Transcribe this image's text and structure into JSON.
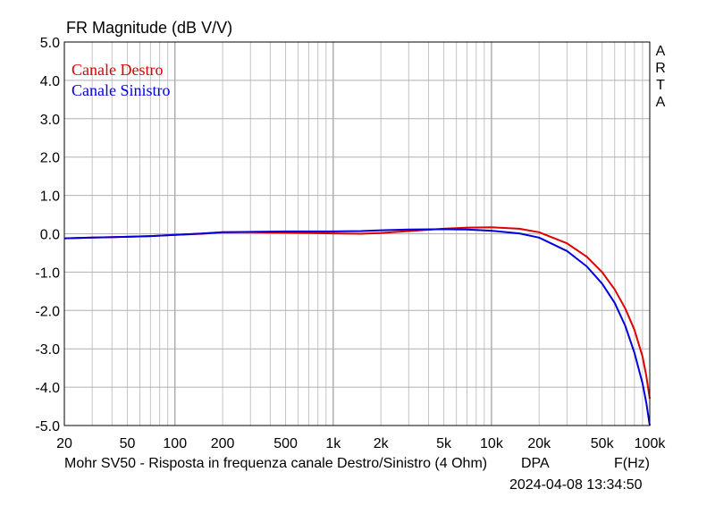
{
  "chart_data": {
    "type": "line",
    "title": "FR Magnitude (dB V/V)",
    "xlabel": "F(Hz)",
    "ylabel": "",
    "xscale": "log",
    "xlim": [
      20,
      100000
    ],
    "ylim": [
      -5.0,
      5.0
    ],
    "grid": true,
    "legend_position": "top-left",
    "x_tick_labels": [
      "20",
      "50",
      "100",
      "200",
      "500",
      "1k",
      "2k",
      "5k",
      "10k",
      "20k",
      "50k",
      "100k"
    ],
    "x_tick_values": [
      20,
      50,
      100,
      200,
      500,
      1000,
      2000,
      5000,
      10000,
      20000,
      50000,
      100000
    ],
    "y_tick_labels": [
      "5.0",
      "4.0",
      "3.0",
      "2.0",
      "1.0",
      "0.0",
      "-1.0",
      "-2.0",
      "-3.0",
      "-4.0",
      "-5.0"
    ],
    "y_tick_values": [
      5,
      4,
      3,
      2,
      1,
      0,
      -1,
      -2,
      -3,
      -4,
      -5
    ],
    "x": [
      20,
      30,
      50,
      70,
      100,
      150,
      200,
      300,
      500,
      700,
      1000,
      1500,
      2000,
      3000,
      5000,
      7000,
      10000,
      15000,
      20000,
      30000,
      40000,
      50000,
      60000,
      70000,
      80000,
      90000,
      95000,
      100000
    ],
    "series": [
      {
        "name": "Canale Destro",
        "color": "#dd0000",
        "values": [
          -0.12,
          -0.1,
          -0.08,
          -0.06,
          -0.03,
          0.0,
          0.04,
          0.04,
          0.03,
          0.02,
          0.01,
          0.0,
          0.02,
          0.07,
          0.13,
          0.16,
          0.17,
          0.13,
          0.04,
          -0.25,
          -0.6,
          -1.0,
          -1.45,
          -1.95,
          -2.5,
          -3.2,
          -3.7,
          -4.3
        ]
      },
      {
        "name": "Canale Sinistro",
        "color": "#0000dd",
        "values": [
          -0.12,
          -0.1,
          -0.08,
          -0.06,
          -0.03,
          0.01,
          0.04,
          0.05,
          0.06,
          0.06,
          0.06,
          0.07,
          0.09,
          0.11,
          0.12,
          0.11,
          0.08,
          0.01,
          -0.1,
          -0.45,
          -0.85,
          -1.3,
          -1.8,
          -2.4,
          -3.1,
          -3.9,
          -4.4,
          -5.0
        ]
      }
    ],
    "side_label": "ARTA",
    "caption": "Mohr SV50 - Risposta in frequenza canale Destro/Sinistro (4 Ohm)",
    "brand": "DPA",
    "timestamp": "2024-04-08  13:34:50"
  }
}
